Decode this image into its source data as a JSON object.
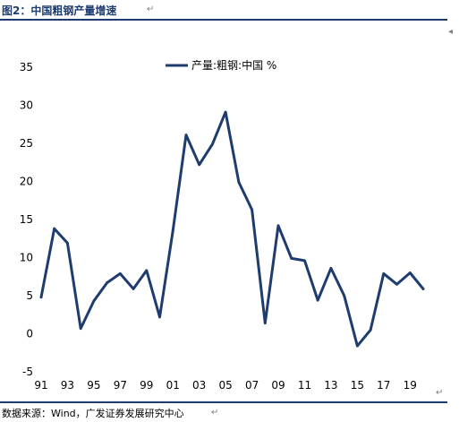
{
  "figure": {
    "title": "图2：中国粗钢产量增速",
    "source": "数据来源：Wind，广发证券发展研究中心"
  },
  "colors": {
    "series": "#1f3c6e",
    "title": "#1f3c6e"
  },
  "chart_data": {
    "type": "line",
    "legend_position": "top",
    "grid": false,
    "x": [
      "91",
      "92",
      "93",
      "94",
      "95",
      "96",
      "97",
      "98",
      "99",
      "00",
      "01",
      "02",
      "03",
      "04",
      "05",
      "06",
      "07",
      "08",
      "09",
      "10",
      "11",
      "12",
      "13",
      "14",
      "15",
      "16",
      "17",
      "18",
      "19",
      "20"
    ],
    "x_tick_labels": [
      "91",
      "93",
      "95",
      "97",
      "99",
      "01",
      "03",
      "05",
      "07",
      "09",
      "11",
      "13",
      "15",
      "17",
      "19"
    ],
    "y_ticks": [
      35,
      30,
      25,
      20,
      15,
      10,
      5,
      0,
      -5
    ],
    "ylim": [
      -5,
      35
    ],
    "series": [
      {
        "name": "产量:粗钢:中国 %",
        "values": [
          4.8,
          13.8,
          11.9,
          0.7,
          4.3,
          6.7,
          7.9,
          5.9,
          8.3,
          2.2,
          13.5,
          26.1,
          22.2,
          24.9,
          29.1,
          19.9,
          16.3,
          1.4,
          14.2,
          9.9,
          9.6,
          4.4,
          8.6,
          5.0,
          -1.6,
          0.5,
          7.9,
          6.5,
          8.0,
          5.9
        ]
      }
    ]
  }
}
